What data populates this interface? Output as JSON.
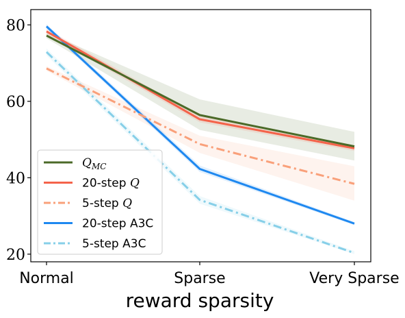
{
  "chart_data": {
    "type": "line",
    "xlabel": "reward sparsity",
    "ylabel": "",
    "categories": [
      "Normal",
      "Sparse",
      "Very Sparse"
    ],
    "ylim": [
      18,
      84
    ],
    "yticks": [
      20,
      40,
      60,
      80
    ],
    "grid": false,
    "legend_position": "lower-left",
    "series": [
      {
        "name": "Q",
        "name_sub": "MC",
        "math": true,
        "color": "#4b6a28",
        "dash": "solid",
        "values": [
          77.2,
          56.4,
          48.2
        ],
        "band_lower": [
          76.5,
          52.5,
          44.5
        ],
        "band_upper": [
          78.0,
          60.5,
          52.0
        ]
      },
      {
        "name_text": "20-step ",
        "name_math": "Q",
        "color": "#f4634a",
        "dash": "solid",
        "values": [
          78.3,
          55.3,
          47.7
        ],
        "band_lower": [
          77.5,
          54.5,
          47.0
        ],
        "band_upper": [
          79.0,
          56.2,
          48.5
        ]
      },
      {
        "name_text": "5-step ",
        "name_math": "Q",
        "color": "#f9a07a",
        "dash": "dashdot",
        "values": [
          68.6,
          48.8,
          38.4
        ],
        "band_lower": [
          68.0,
          46.5,
          34.0
        ],
        "band_upper": [
          69.2,
          51.0,
          43.0
        ]
      },
      {
        "name_text": "20-step A3C",
        "color": "#1e88f0",
        "dash": "solid",
        "values": [
          79.6,
          42.3,
          28.0
        ],
        "band_lower": [
          79.0,
          41.5,
          27.6
        ],
        "band_upper": [
          80.2,
          43.2,
          28.4
        ]
      },
      {
        "name_text": "5-step A3C",
        "color": "#86cfe8",
        "dash": "dashdot",
        "values": [
          72.9,
          34.2,
          20.3
        ],
        "band_lower": [
          72.0,
          33.2,
          20.0
        ],
        "band_upper": [
          73.8,
          35.2,
          20.8
        ]
      }
    ]
  }
}
